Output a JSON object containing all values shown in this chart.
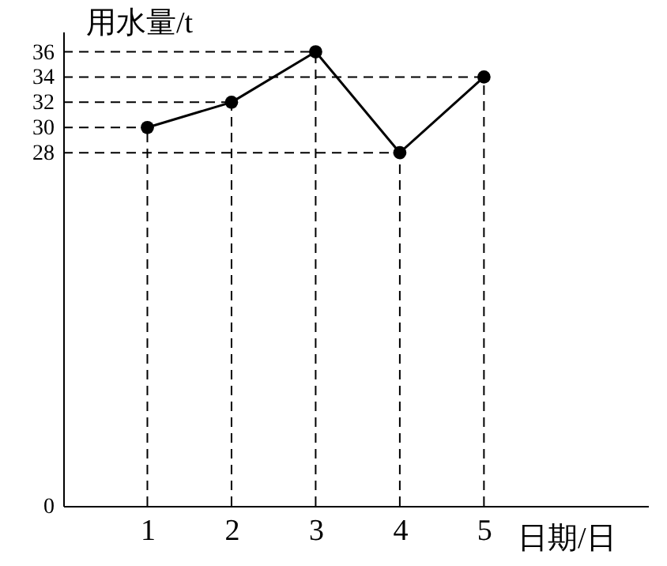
{
  "chart_data": {
    "type": "line",
    "xlabel": "日期/日",
    "ylabel": "用水量/t",
    "x": [
      1,
      2,
      3,
      4,
      5
    ],
    "series": [
      {
        "color": "#000000",
        "values": [
          30,
          32,
          36,
          28,
          34
        ]
      }
    ],
    "xlim": [
      0,
      6.95
    ],
    "xticks": [
      1,
      2,
      3,
      4,
      5
    ],
    "ylim": [
      0,
      37.6
    ],
    "yticks": [
      0,
      28,
      30,
      32,
      34,
      36
    ],
    "ref_lines": [
      {
        "axis": "x",
        "value": 1,
        "line_style": "dashed"
      },
      {
        "axis": "x",
        "value": 2,
        "line_style": "dashed"
      },
      {
        "axis": "x",
        "value": 3,
        "line_style": "dashed"
      },
      {
        "axis": "x",
        "value": 4,
        "line_style": "dashed"
      },
      {
        "axis": "x",
        "value": 5,
        "line_style": "dashed"
      },
      {
        "axis": "y",
        "value": 30,
        "line_style": "dashed"
      },
      {
        "axis": "y",
        "value": 32,
        "line_style": "dashed"
      },
      {
        "axis": "y",
        "value": 36,
        "line_style": "dashed"
      },
      {
        "axis": "y",
        "value": 28,
        "line_style": "dashed"
      },
      {
        "axis": "y",
        "value": 34,
        "line_style": "dashed"
      }
    ],
    "grid": false,
    "marker": "circle",
    "line_style": "solid"
  }
}
